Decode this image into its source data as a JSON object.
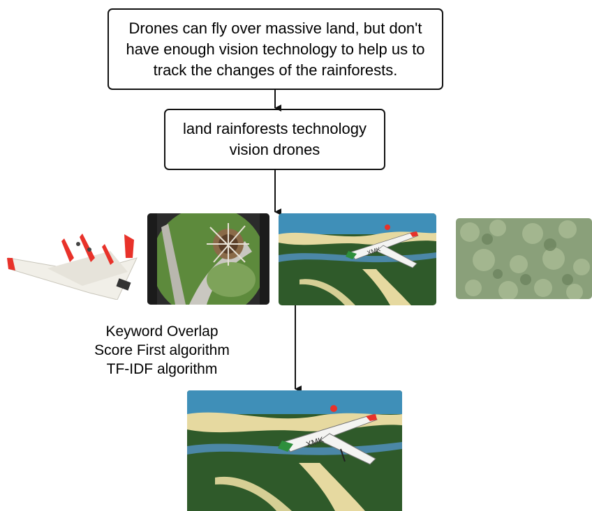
{
  "sentence_box": {
    "text": "Drones can fly over massive land, but don't have enough vision technology to help us to track the changes of the rainforests."
  },
  "keywords_box": {
    "text": "land rainforests technology vision drones"
  },
  "algorithms": [
    "Keyword Overlap",
    "Score First algorithm",
    "TF-IDF algorithm"
  ],
  "plane_marking": "XMK",
  "colors": {
    "border": "#111111",
    "water": "#3f8fb8",
    "jungle": "#2f5a2a",
    "river_sand": "#e6d9a0",
    "canopy": "#8aa07a",
    "wing_tip": "#e8322a"
  }
}
